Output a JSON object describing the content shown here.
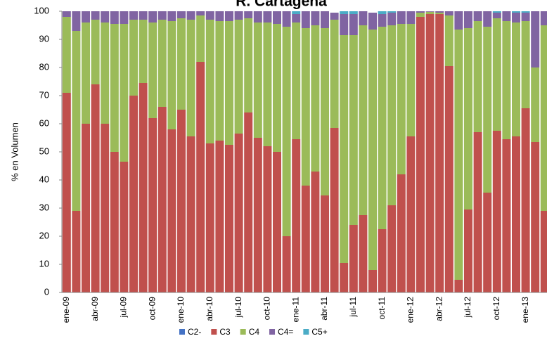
{
  "chart_data": {
    "type": "stacked_bar",
    "title": "R. Cartagena",
    "y_label": "% en Volumen",
    "categories": [
      "ene-09",
      null,
      null,
      "abr-09",
      null,
      null,
      "jul-09",
      null,
      null,
      "oct-09",
      null,
      null,
      "ene-10",
      null,
      null,
      "abr-10",
      null,
      null,
      "jul-10",
      null,
      null,
      "oct-10",
      null,
      null,
      "ene-11",
      null,
      null,
      "abr-11",
      null,
      null,
      "jul-11",
      null,
      null,
      "oct-11",
      null,
      null,
      "ene-12",
      null,
      null,
      "abr-12",
      null,
      null,
      "jul-12",
      null,
      null,
      "oct-12",
      null,
      null,
      "ene-13",
      null,
      null
    ],
    "series": [
      {
        "name": "C2-",
        "color": "#4472c4",
        "values": [
          0,
          0,
          0,
          0,
          0,
          0,
          0,
          0,
          0,
          0,
          0,
          0,
          0,
          0,
          0,
          0,
          0,
          0,
          0,
          0,
          0,
          0,
          0,
          0,
          0,
          0,
          0,
          0,
          0,
          0,
          0,
          0,
          0,
          0,
          0,
          0,
          0,
          0,
          0,
          0,
          0,
          0,
          0,
          0,
          0,
          0,
          0,
          0,
          0,
          0,
          0
        ]
      },
      {
        "name": "C3",
        "color": "#c0504d",
        "values": [
          71,
          29,
          60,
          74,
          60,
          50,
          46.5,
          70,
          74.5,
          62,
          66,
          58,
          65,
          55.5,
          82,
          53,
          54,
          52.5,
          56.5,
          64,
          55,
          52,
          50,
          20,
          54.5,
          38,
          43,
          34.5,
          58.5,
          10.5,
          24,
          27.5,
          8,
          22.5,
          31,
          42,
          55.5,
          98,
          99,
          99,
          80.5,
          4.5,
          29.5,
          57,
          35.5,
          57.5,
          54.5,
          55.5,
          65.5,
          53.5,
          29
        ]
      },
      {
        "name": "C4",
        "color": "#9bbb59",
        "values": [
          27,
          64,
          36,
          23,
          36,
          45.5,
          49,
          27,
          22.5,
          34,
          31,
          38.5,
          32.5,
          41.5,
          16.5,
          44,
          42.5,
          44,
          40.5,
          33.5,
          41,
          44,
          45.5,
          74.5,
          41.5,
          56,
          52,
          59.5,
          38.5,
          81,
          67.5,
          67.5,
          85.5,
          72,
          64,
          53.5,
          40,
          1.5,
          0.8,
          0.5,
          18,
          89,
          64.5,
          39.5,
          59,
          40,
          42,
          40.5,
          31,
          26.5,
          66
        ]
      },
      {
        "name": "C4=",
        "color": "#8064a2",
        "values": [
          2,
          7,
          4,
          3,
          4,
          4.5,
          4.5,
          3,
          3,
          4,
          3,
          3.5,
          2.5,
          3,
          1.5,
          3,
          3.5,
          3.5,
          3,
          2.5,
          4,
          4,
          4.5,
          5.5,
          3,
          6,
          5,
          6,
          2.5,
          7.5,
          7.5,
          5,
          6,
          4.5,
          4.5,
          4.5,
          4.5,
          0.5,
          0.2,
          0.5,
          1.5,
          6.5,
          6,
          3.5,
          5.5,
          2,
          3.5,
          3.5,
          3,
          20,
          5
        ]
      },
      {
        "name": "C5+",
        "color": "#4bacc6",
        "values": [
          0,
          0,
          0,
          0,
          0,
          0,
          0,
          0,
          0,
          0,
          0,
          0,
          0,
          0,
          0,
          0,
          0,
          0,
          0,
          0,
          0,
          0,
          0,
          0,
          1,
          0,
          0,
          0,
          0,
          1,
          1,
          0,
          0,
          1,
          0.5,
          0,
          0,
          0,
          0,
          0,
          0,
          0,
          0,
          0,
          0,
          0.5,
          0,
          0.5,
          0.5,
          0,
          0
        ]
      }
    ],
    "ylim": [
      0,
      100
    ],
    "yticks": [
      0,
      10,
      20,
      30,
      40,
      50,
      60,
      70,
      80,
      90,
      100
    ],
    "legend": "bottom"
  }
}
